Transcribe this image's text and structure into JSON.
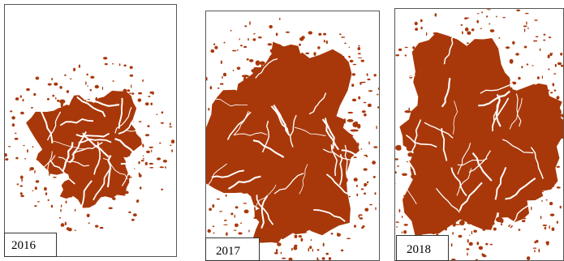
{
  "panels": [
    {
      "label": "2016"
    },
    {
      "label": "2017"
    },
    {
      "label": "2018"
    }
  ]
}
